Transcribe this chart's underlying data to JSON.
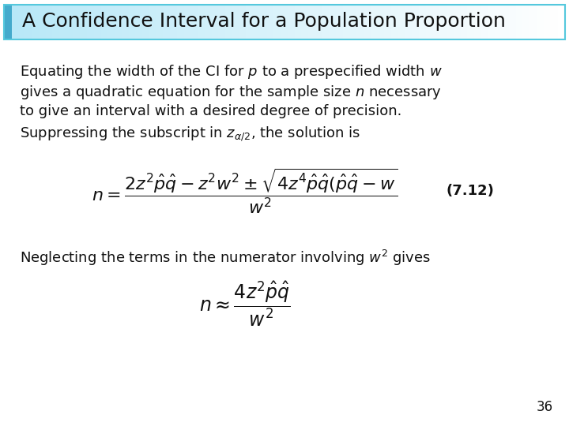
{
  "title": "A Confidence Interval for a Population Proportion",
  "title_bg_left": "#b8e8f8",
  "title_bg_right": "#ffffff",
  "title_border_color": "#55c8dd",
  "title_left_accent": "#44aacc",
  "title_text_color": "#111111",
  "body_bg_color": "#ffffff",
  "text_color": "#111111",
  "para1_line1": "Equating the width of the CI for $p$ to a prespecified width $w$",
  "para1_line2": "gives a quadratic equation for the sample size $n$ necessary",
  "para1_line3": "to give an interval with a desired degree of precision.",
  "para1_line4": "Suppressing the subscript in $z_{\\alpha/2}$, the solution is",
  "label1": "(7.12)",
  "para2": "Neglecting the terms in the numerator involving $w^{2}$ gives",
  "page_number": "36",
  "font_size_title": 18,
  "font_size_body": 13,
  "font_size_formula1": 13,
  "font_size_formula2": 13,
  "font_size_label": 12,
  "font_size_page": 12
}
